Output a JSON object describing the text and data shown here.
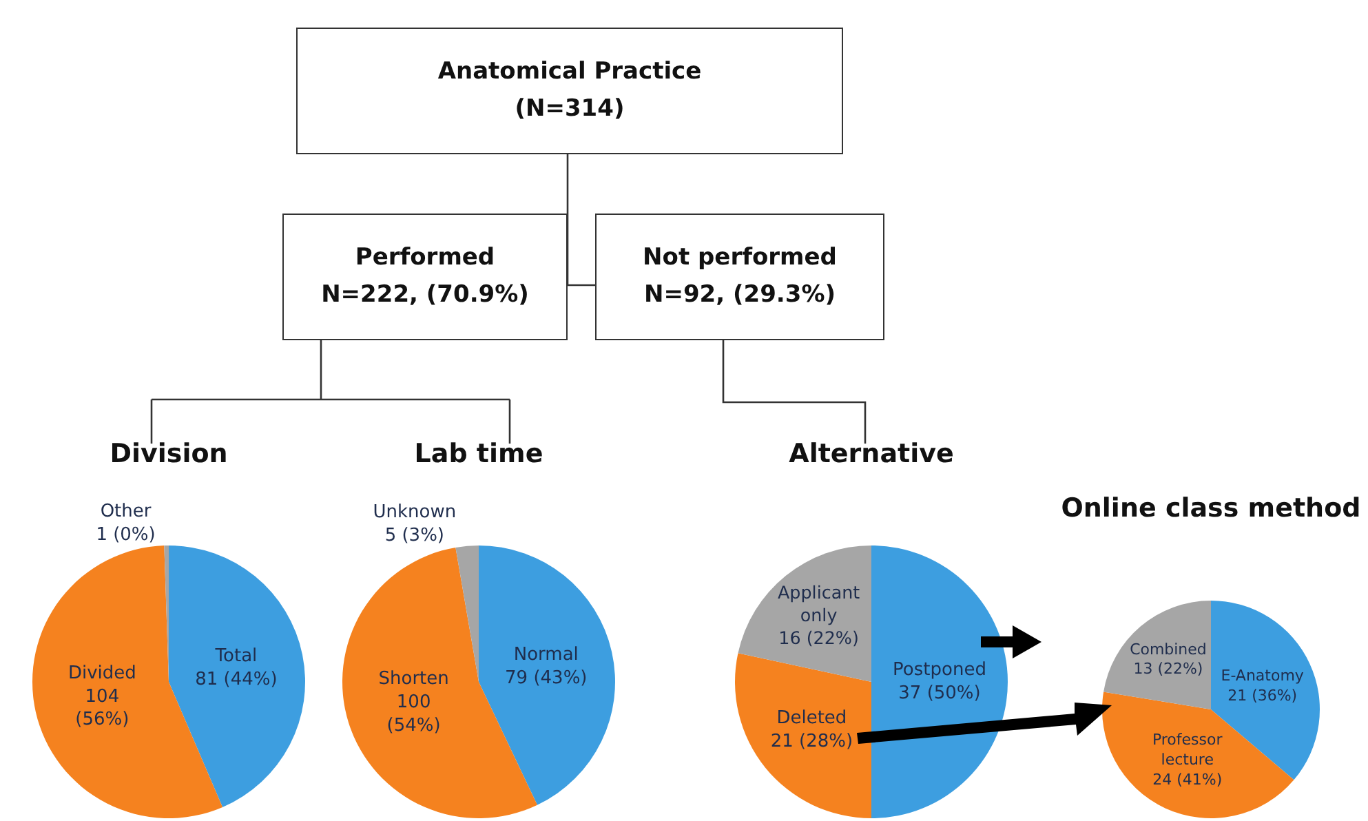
{
  "chart_data": [
    {
      "type": "other",
      "annotations": [
        "Anatomical Practice\n(N=314)",
        "Performed\nN=222, (70.9%)",
        "Not performed\nN=92, (29.3%)"
      ]
    },
    {
      "type": "pie",
      "title": "Division",
      "categories": [
        "Total",
        "Divided",
        "Other"
      ],
      "values": [
        81,
        104,
        1
      ],
      "value_labels": [
        "81 (44%)",
        "104\n(56%)",
        "1 (0%)"
      ],
      "colors": [
        "#3d9ee0",
        "#f5821f",
        "#a6a6a6"
      ]
    },
    {
      "type": "pie",
      "title": "Lab time",
      "categories": [
        "Normal",
        "Shorten",
        "Unknown"
      ],
      "values": [
        79,
        100,
        5
      ],
      "value_labels": [
        "79 (43%)",
        "100\n(54%)",
        "5 (3%)"
      ],
      "colors": [
        "#3d9ee0",
        "#f5821f",
        "#a6a6a6"
      ]
    },
    {
      "type": "pie",
      "title": "Alternative",
      "categories": [
        "Postponed",
        "Deleted",
        "Applicant\nonly"
      ],
      "values": [
        37,
        21,
        16
      ],
      "value_labels": [
        "37 (50%)",
        "21 (28%)",
        "16 (22%)"
      ],
      "colors": [
        "#3d9ee0",
        "#f5821f",
        "#a6a6a6"
      ]
    },
    {
      "type": "pie",
      "title": "Online class method",
      "categories": [
        "E-Anatomy",
        "Professor\nlecture",
        "Combined"
      ],
      "values": [
        21,
        24,
        13
      ],
      "value_labels": [
        "21 (36%)",
        "24 (41%)",
        "13 (22%)"
      ],
      "colors": [
        "#3d9ee0",
        "#f5821f",
        "#a6a6a6"
      ]
    }
  ]
}
